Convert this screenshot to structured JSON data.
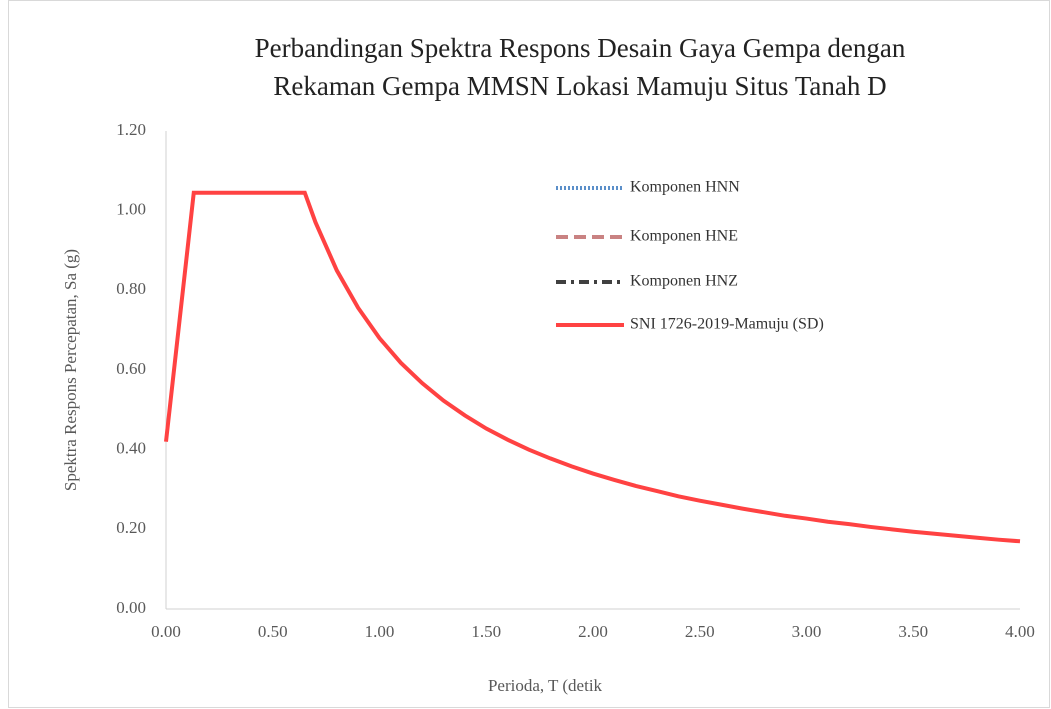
{
  "chart_data": {
    "type": "line",
    "title": [
      "Perbandingan Spektra Respons Desain Gaya Gempa dengan",
      "Rekaman Gempa MMSN Lokasi Mamuju Situs Tanah D"
    ],
    "x_label": "Perioda, T (detik",
    "y_label": "Spektra Respons Percepatan, Sa (g)",
    "x": [
      0,
      0.1,
      0.13,
      0.65,
      0.7,
      0.8,
      0.9,
      1.0,
      1.1,
      1.2,
      1.3,
      1.4,
      1.5,
      1.6,
      1.7,
      1.8,
      1.9,
      2.0,
      2.1,
      2.2,
      2.3,
      2.4,
      2.5,
      2.6,
      2.7,
      2.8,
      2.9,
      3.0,
      3.1,
      3.2,
      3.3,
      3.4,
      3.5,
      3.6,
      3.7,
      3.8,
      3.9,
      4.0
    ],
    "series": [
      {
        "name": "Komponen HNN",
        "color": "#5b8fc9",
        "dash": "dotted",
        "values": [
          null,
          null,
          null,
          null,
          null,
          null,
          null,
          null,
          null,
          null,
          null,
          null,
          null,
          null,
          null,
          null,
          null,
          null,
          null,
          null,
          null,
          null,
          null,
          null,
          null,
          null,
          null,
          null,
          null,
          null,
          null,
          null,
          null,
          null,
          null,
          null,
          null,
          null
        ]
      },
      {
        "name": "Komponen HNE",
        "color": "#c98282",
        "dash": "dashed",
        "values": [
          null,
          null,
          null,
          null,
          null,
          null,
          null,
          null,
          null,
          null,
          null,
          null,
          null,
          null,
          null,
          null,
          null,
          null,
          null,
          null,
          null,
          null,
          null,
          null,
          null,
          null,
          null,
          null,
          null,
          null,
          null,
          null,
          null,
          null,
          null,
          null,
          null,
          null
        ]
      },
      {
        "name": "Komponen HNZ",
        "color": "#404040",
        "dash": "dashdot",
        "values": [
          null,
          null,
          null,
          null,
          null,
          null,
          null,
          null,
          null,
          null,
          null,
          null,
          null,
          null,
          null,
          null,
          null,
          null,
          null,
          null,
          null,
          null,
          null,
          null,
          null,
          null,
          null,
          null,
          null,
          null,
          null,
          null,
          null,
          null,
          null,
          null,
          null,
          null
        ]
      },
      {
        "name": "SNI 1726-2019-Mamuju (SD)",
        "color": "#ff4242",
        "dash": "solid",
        "values": [
          0.42,
          0.9,
          1.045,
          1.045,
          0.971,
          0.85,
          0.756,
          0.68,
          0.618,
          0.567,
          0.523,
          0.486,
          0.453,
          0.425,
          0.4,
          0.378,
          0.358,
          0.34,
          0.324,
          0.309,
          0.296,
          0.283,
          0.272,
          0.262,
          0.252,
          0.243,
          0.234,
          0.227,
          0.219,
          0.213,
          0.206,
          0.2,
          0.194,
          0.189,
          0.184,
          0.179,
          0.174,
          0.17
        ]
      }
    ],
    "xlim": [
      0,
      4
    ],
    "xticks": [
      {
        "value": 0,
        "label": "0.00"
      },
      {
        "value": 0.5,
        "label": "0.50"
      },
      {
        "value": 1,
        "label": "1.00"
      },
      {
        "value": 1.5,
        "label": "1.50"
      },
      {
        "value": 2,
        "label": "2.00"
      },
      {
        "value": 2.5,
        "label": "2.50"
      },
      {
        "value": 3,
        "label": "3.00"
      },
      {
        "value": 3.5,
        "label": "3.50"
      },
      {
        "value": 4,
        "label": "4.00"
      }
    ],
    "ylim": [
      0,
      1.2
    ],
    "yticks": [
      {
        "value": 0,
        "label": "0.00"
      },
      {
        "value": 0.2,
        "label": "0.20"
      },
      {
        "value": 0.4,
        "label": "0.40"
      },
      {
        "value": 0.6,
        "label": "0.60"
      },
      {
        "value": 0.8,
        "label": "0.80"
      },
      {
        "value": 1,
        "label": "1.00"
      },
      {
        "value": 1.2,
        "label": "1.20"
      }
    ],
    "grid": false,
    "legend": "upper-right"
  }
}
